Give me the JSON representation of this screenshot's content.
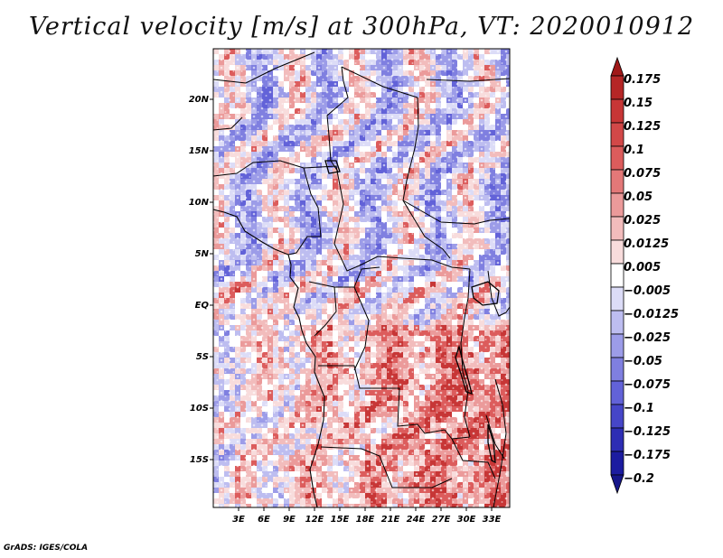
{
  "title": "Vertical velocity [m/s] at 300hPa, VT: 2020010912",
  "footer": "GrADS: IGES/COLA",
  "map": {
    "variable": "Vertical velocity",
    "units": "m/s",
    "level": "300hPa",
    "valid_time": "2020010912",
    "lat_labels": [
      "20N",
      "15N",
      "10N",
      "5N",
      "EQ",
      "5S",
      "10S",
      "15S"
    ],
    "lon_labels": [
      "3E",
      "6E",
      "9E",
      "12E",
      "15E",
      "18E",
      "21E",
      "24E",
      "27E",
      "30E",
      "33E"
    ],
    "lon_range": [
      0,
      35
    ],
    "lat_range": [
      -20,
      24.5
    ]
  },
  "colorbar": {
    "labels": [
      "0.175",
      "0.15",
      "0.125",
      "0.1",
      "0.075",
      "0.05",
      "0.025",
      "0.0125",
      "0.005",
      "−0.005",
      "−0.0125",
      "−0.025",
      "−0.05",
      "−0.075",
      "−0.1",
      "−0.125",
      "−0.175",
      "−0.2"
    ],
    "colors": [
      "#a01818",
      "#b52626",
      "#c73636",
      "#d24848",
      "#dc5c5c",
      "#e37878",
      "#eb9a9a",
      "#f2bcbc",
      "#f8dcdc",
      "#ffffff",
      "#dcdcf7",
      "#bdbdf0",
      "#9c9ce8",
      "#7f7fe0",
      "#6262d8",
      "#4646c8",
      "#2d2db4",
      "#1c1ca0",
      "#16168a"
    ]
  }
}
